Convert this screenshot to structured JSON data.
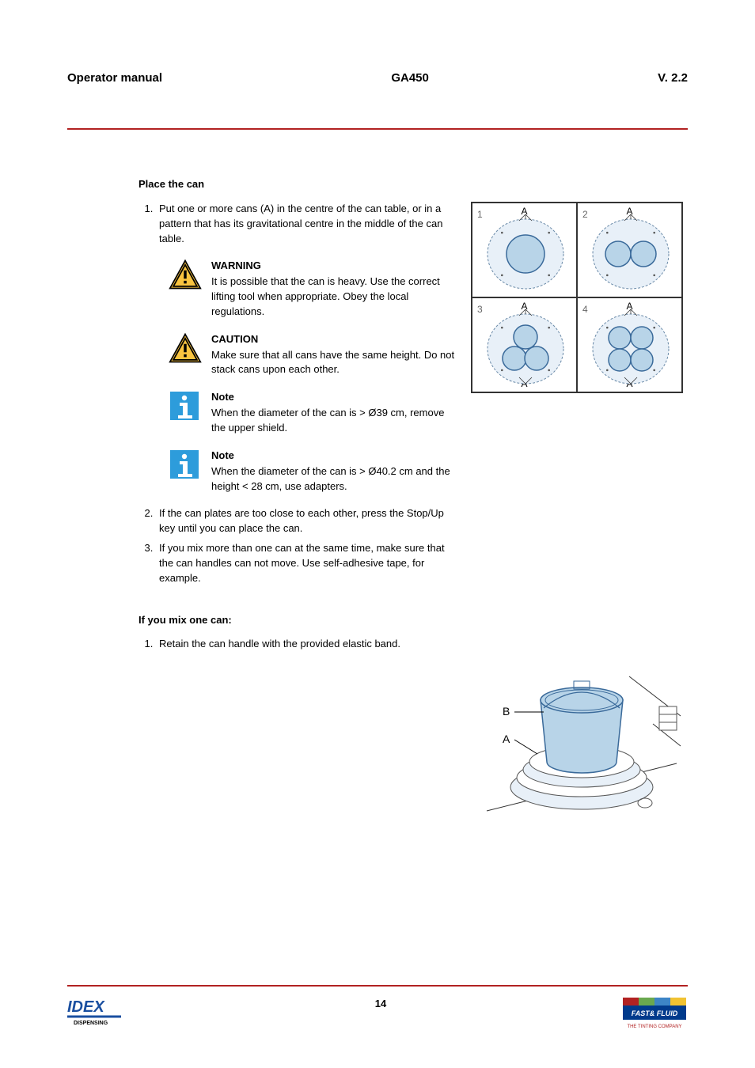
{
  "header": {
    "left": "Operator manual",
    "center": "GA450",
    "right": "V. 2.2"
  },
  "section1": {
    "title": "Place the can",
    "steps": [
      "Put one or more cans (A) in the centre of the can table, or in a pattern that has its gravitational centre in the middle of the can table.",
      "If the can plates are too close to each other, press the Stop/Up key until you can place the can.",
      "If you mix more than one can at the same time, make sure that the can handles can not move. Use self-adhesive tape, for example."
    ],
    "callouts": [
      {
        "type": "warning",
        "title": "WARNING",
        "body": "It is possible that the can is heavy. Use the correct lifting tool when appropriate. Obey the local regulations."
      },
      {
        "type": "caution",
        "title": "CAUTION",
        "body": "Make sure that all cans have the same height. Do not stack cans upon each other."
      },
      {
        "type": "note",
        "title": "Note",
        "body": "When the diameter of the can is > Ø39 cm, remove the upper shield."
      },
      {
        "type": "note",
        "title": "Note",
        "body": "When the diameter of the can is > Ø40.2 cm and the height < 28 cm, use adapters."
      }
    ]
  },
  "diagram_grid": {
    "cells": [
      {
        "num": "1",
        "label_top": "A",
        "circles": 1,
        "label_bottom": ""
      },
      {
        "num": "2",
        "label_top": "A",
        "circles": 2,
        "label_bottom": ""
      },
      {
        "num": "3",
        "label_top": "A",
        "circles": 3,
        "label_bottom": "A"
      },
      {
        "num": "4",
        "label_top": "A",
        "circles": 4,
        "label_bottom": "A"
      }
    ],
    "colors": {
      "plate_fill": "#e8f0f8",
      "plate_stroke": "#6a8aa8",
      "can_fill": "#b8d4e8",
      "can_stroke": "#3a6a9a"
    }
  },
  "section2": {
    "title": "If you mix one can:",
    "steps": [
      "Retain the can handle with the provided elastic band."
    ]
  },
  "can_figure": {
    "labels": {
      "top": "B",
      "bottom": "A"
    },
    "colors": {
      "bucket_fill": "#b8d4e8",
      "bucket_stroke": "#3a6a9a",
      "base_fill": "#e8f0f8",
      "base_stroke": "#555",
      "line_stroke": "#333"
    }
  },
  "footer": {
    "page_number": "14",
    "left_logo": {
      "text_top": "IDEX",
      "text_bottom": "DISPENSING",
      "color": "#1a4fa0"
    },
    "right_logo": {
      "bar_colors": [
        "#b22222",
        "#6aa84f",
        "#3d85c6",
        "#f1c232"
      ],
      "brand": "FAST& FLUID",
      "brand_bg": "#003a8c",
      "tagline": "THE TINTING COMPANY",
      "tagline_color": "#b22222"
    }
  }
}
